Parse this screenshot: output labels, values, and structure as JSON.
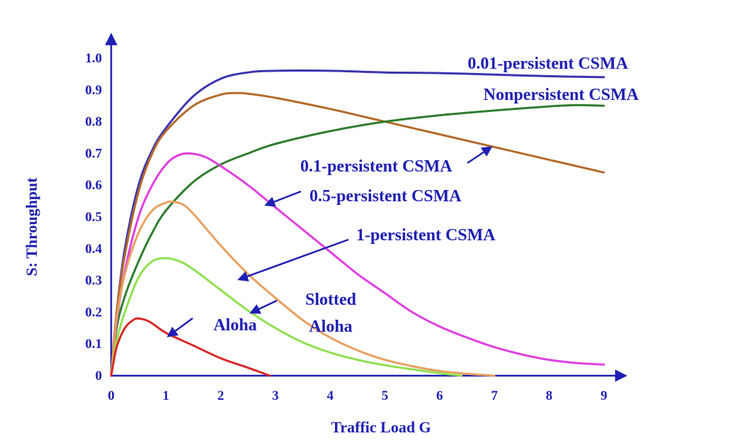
{
  "chart_data": {
    "type": "line",
    "title": "",
    "xlabel": "Traffic Load G",
    "ylabel": "S: Throughput",
    "xlim": [
      0,
      9
    ],
    "ylim": [
      0,
      1.0
    ],
    "x_ticks": [
      "0",
      "1",
      "2",
      "3",
      "4",
      "5",
      "6",
      "7",
      "8",
      "9"
    ],
    "y_ticks": [
      "0",
      "0.1",
      "0.2",
      "0.3",
      "0.4",
      "0.5",
      "0.6",
      "0.7",
      "0.8",
      "0.9",
      "1.0"
    ],
    "grid": false,
    "legend": "none",
    "series": [
      {
        "name": "0.01-persistent CSMA",
        "label_lines": [
          "0.01-persistent CSMA"
        ],
        "color": "#3a34b0",
        "points": [
          [
            0,
            0
          ],
          [
            0.1,
            0.2
          ],
          [
            0.25,
            0.4
          ],
          [
            0.5,
            0.6
          ],
          [
            0.75,
            0.71
          ],
          [
            1,
            0.78
          ],
          [
            1.5,
            0.88
          ],
          [
            2,
            0.935
          ],
          [
            2.5,
            0.955
          ],
          [
            3,
            0.96
          ],
          [
            4,
            0.96
          ],
          [
            5,
            0.955
          ],
          [
            6,
            0.953
          ],
          [
            7,
            0.948
          ],
          [
            8,
            0.943
          ],
          [
            9,
            0.94
          ]
        ]
      },
      {
        "name": "Nonpersistent CSMA",
        "label_lines": [
          "Nonpersistent CSMA"
        ],
        "color": "#b56a2a",
        "points": [
          [
            0,
            0
          ],
          [
            0.1,
            0.2
          ],
          [
            0.25,
            0.38
          ],
          [
            0.5,
            0.58
          ],
          [
            0.75,
            0.7
          ],
          [
            1,
            0.77
          ],
          [
            1.5,
            0.85
          ],
          [
            2,
            0.885
          ],
          [
            2.3,
            0.89
          ],
          [
            2.5,
            0.888
          ],
          [
            3,
            0.875
          ],
          [
            4,
            0.84
          ],
          [
            5,
            0.8
          ],
          [
            6,
            0.76
          ],
          [
            7,
            0.72
          ],
          [
            8,
            0.68
          ],
          [
            9,
            0.64
          ]
        ]
      },
      {
        "name": "0.1-persistent CSMA",
        "label_lines": [
          "0.1-persistent CSMA"
        ],
        "color": "#2e7d2e",
        "points": [
          [
            0,
            0
          ],
          [
            0.1,
            0.15
          ],
          [
            0.25,
            0.25
          ],
          [
            0.5,
            0.36
          ],
          [
            0.75,
            0.45
          ],
          [
            1,
            0.52
          ],
          [
            1.5,
            0.61
          ],
          [
            2,
            0.665
          ],
          [
            2.5,
            0.7
          ],
          [
            3,
            0.73
          ],
          [
            4,
            0.77
          ],
          [
            5,
            0.8
          ],
          [
            6,
            0.82
          ],
          [
            7,
            0.835
          ],
          [
            8,
            0.848
          ],
          [
            8.5,
            0.852
          ],
          [
            9,
            0.85
          ]
        ]
      },
      {
        "name": "0.5-persistent CSMA",
        "label_lines": [
          "0.5-persistent CSMA"
        ],
        "color": "#e040e0",
        "points": [
          [
            0,
            0
          ],
          [
            0.1,
            0.17
          ],
          [
            0.25,
            0.33
          ],
          [
            0.5,
            0.5
          ],
          [
            0.75,
            0.6
          ],
          [
            1,
            0.665
          ],
          [
            1.2,
            0.692
          ],
          [
            1.4,
            0.7
          ],
          [
            1.7,
            0.69
          ],
          [
            2,
            0.66
          ],
          [
            2.5,
            0.6
          ],
          [
            3,
            0.53
          ],
          [
            3.5,
            0.46
          ],
          [
            4,
            0.39
          ],
          [
            4.5,
            0.32
          ],
          [
            5,
            0.26
          ],
          [
            5.5,
            0.2
          ],
          [
            6,
            0.155
          ],
          [
            6.5,
            0.12
          ],
          [
            7,
            0.09
          ],
          [
            7.5,
            0.067
          ],
          [
            8,
            0.05
          ],
          [
            8.5,
            0.04
          ],
          [
            9,
            0.035
          ]
        ]
      },
      {
        "name": "1-persistent CSMA",
        "label_lines": [
          "1-persistent CSMA"
        ],
        "color": "#e8a060",
        "points": [
          [
            0,
            0
          ],
          [
            0.1,
            0.18
          ],
          [
            0.25,
            0.32
          ],
          [
            0.5,
            0.45
          ],
          [
            0.75,
            0.52
          ],
          [
            1,
            0.545
          ],
          [
            1.1,
            0.548
          ],
          [
            1.3,
            0.54
          ],
          [
            1.5,
            0.51
          ],
          [
            2,
            0.41
          ],
          [
            2.5,
            0.32
          ],
          [
            3,
            0.245
          ],
          [
            3.5,
            0.175
          ],
          [
            4,
            0.12
          ],
          [
            4.5,
            0.08
          ],
          [
            5,
            0.05
          ],
          [
            5.5,
            0.03
          ],
          [
            6,
            0.015
          ],
          [
            6.5,
            0.006
          ],
          [
            7,
            0
          ]
        ]
      },
      {
        "name": "Slotted Aloha",
        "label_lines": [
          "Slotted",
          "Aloha"
        ],
        "color": "#90e050",
        "points": [
          [
            0,
            0
          ],
          [
            0.1,
            0.11
          ],
          [
            0.25,
            0.2
          ],
          [
            0.5,
            0.31
          ],
          [
            0.75,
            0.36
          ],
          [
            1,
            0.37
          ],
          [
            1.25,
            0.36
          ],
          [
            1.5,
            0.335
          ],
          [
            2,
            0.27
          ],
          [
            2.5,
            0.205
          ],
          [
            3,
            0.15
          ],
          [
            3.5,
            0.105
          ],
          [
            4,
            0.073
          ],
          [
            4.5,
            0.05
          ],
          [
            5,
            0.033
          ],
          [
            5.5,
            0.02
          ],
          [
            6,
            0.008
          ],
          [
            6.4,
            0
          ]
        ]
      },
      {
        "name": "Aloha",
        "label_lines": [
          "Aloha"
        ],
        "color": "#d82828",
        "points": [
          [
            0,
            0
          ],
          [
            0.1,
            0.09
          ],
          [
            0.25,
            0.15
          ],
          [
            0.4,
            0.175
          ],
          [
            0.5,
            0.18
          ],
          [
            0.7,
            0.17
          ],
          [
            1,
            0.135
          ],
          [
            1.5,
            0.095
          ],
          [
            2,
            0.055
          ],
          [
            2.5,
            0.025
          ],
          [
            2.9,
            0
          ]
        ]
      }
    ]
  }
}
